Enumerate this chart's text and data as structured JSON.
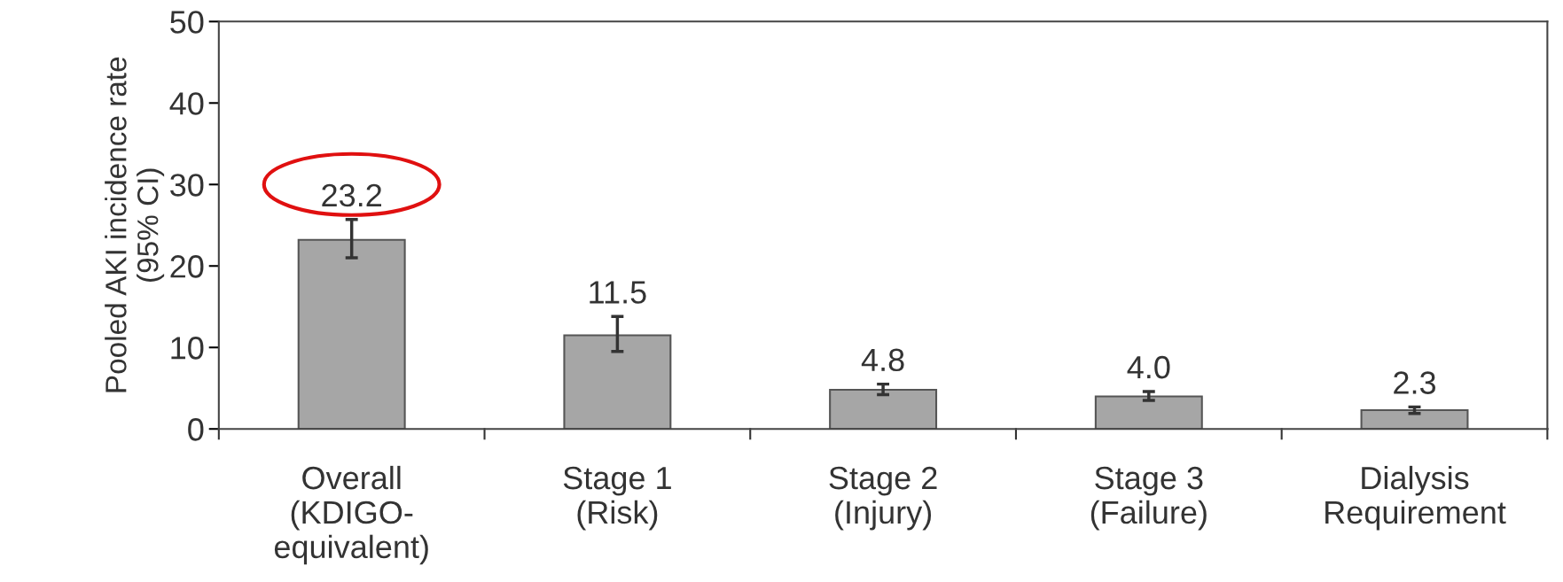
{
  "chart_data": {
    "type": "bar",
    "ylabel": "Pooled AKI incidence rate\n(95% CI)",
    "categories": [
      "Overall\n(KDIGO-\nequivalent)",
      "Stage 1\n(Risk)",
      "Stage 2\n(Injury)",
      "Stage 3\n(Failure)",
      "Dialysis\nRequirement"
    ],
    "values": [
      23.2,
      11.5,
      4.8,
      4.0,
      2.3
    ],
    "errors": [
      [
        21.0,
        25.7
      ],
      [
        9.5,
        13.8
      ],
      [
        4.2,
        5.5
      ],
      [
        3.5,
        4.6
      ],
      [
        1.9,
        2.7
      ]
    ],
    "value_labels": [
      "23.2",
      "11.5",
      "4.8",
      "4.0",
      "2.3"
    ],
    "color": "#a6a6a6",
    "ylim": [
      0,
      50
    ],
    "yticks": [
      0,
      10,
      20,
      30,
      40,
      50
    ],
    "grid": false,
    "legend": false
  }
}
